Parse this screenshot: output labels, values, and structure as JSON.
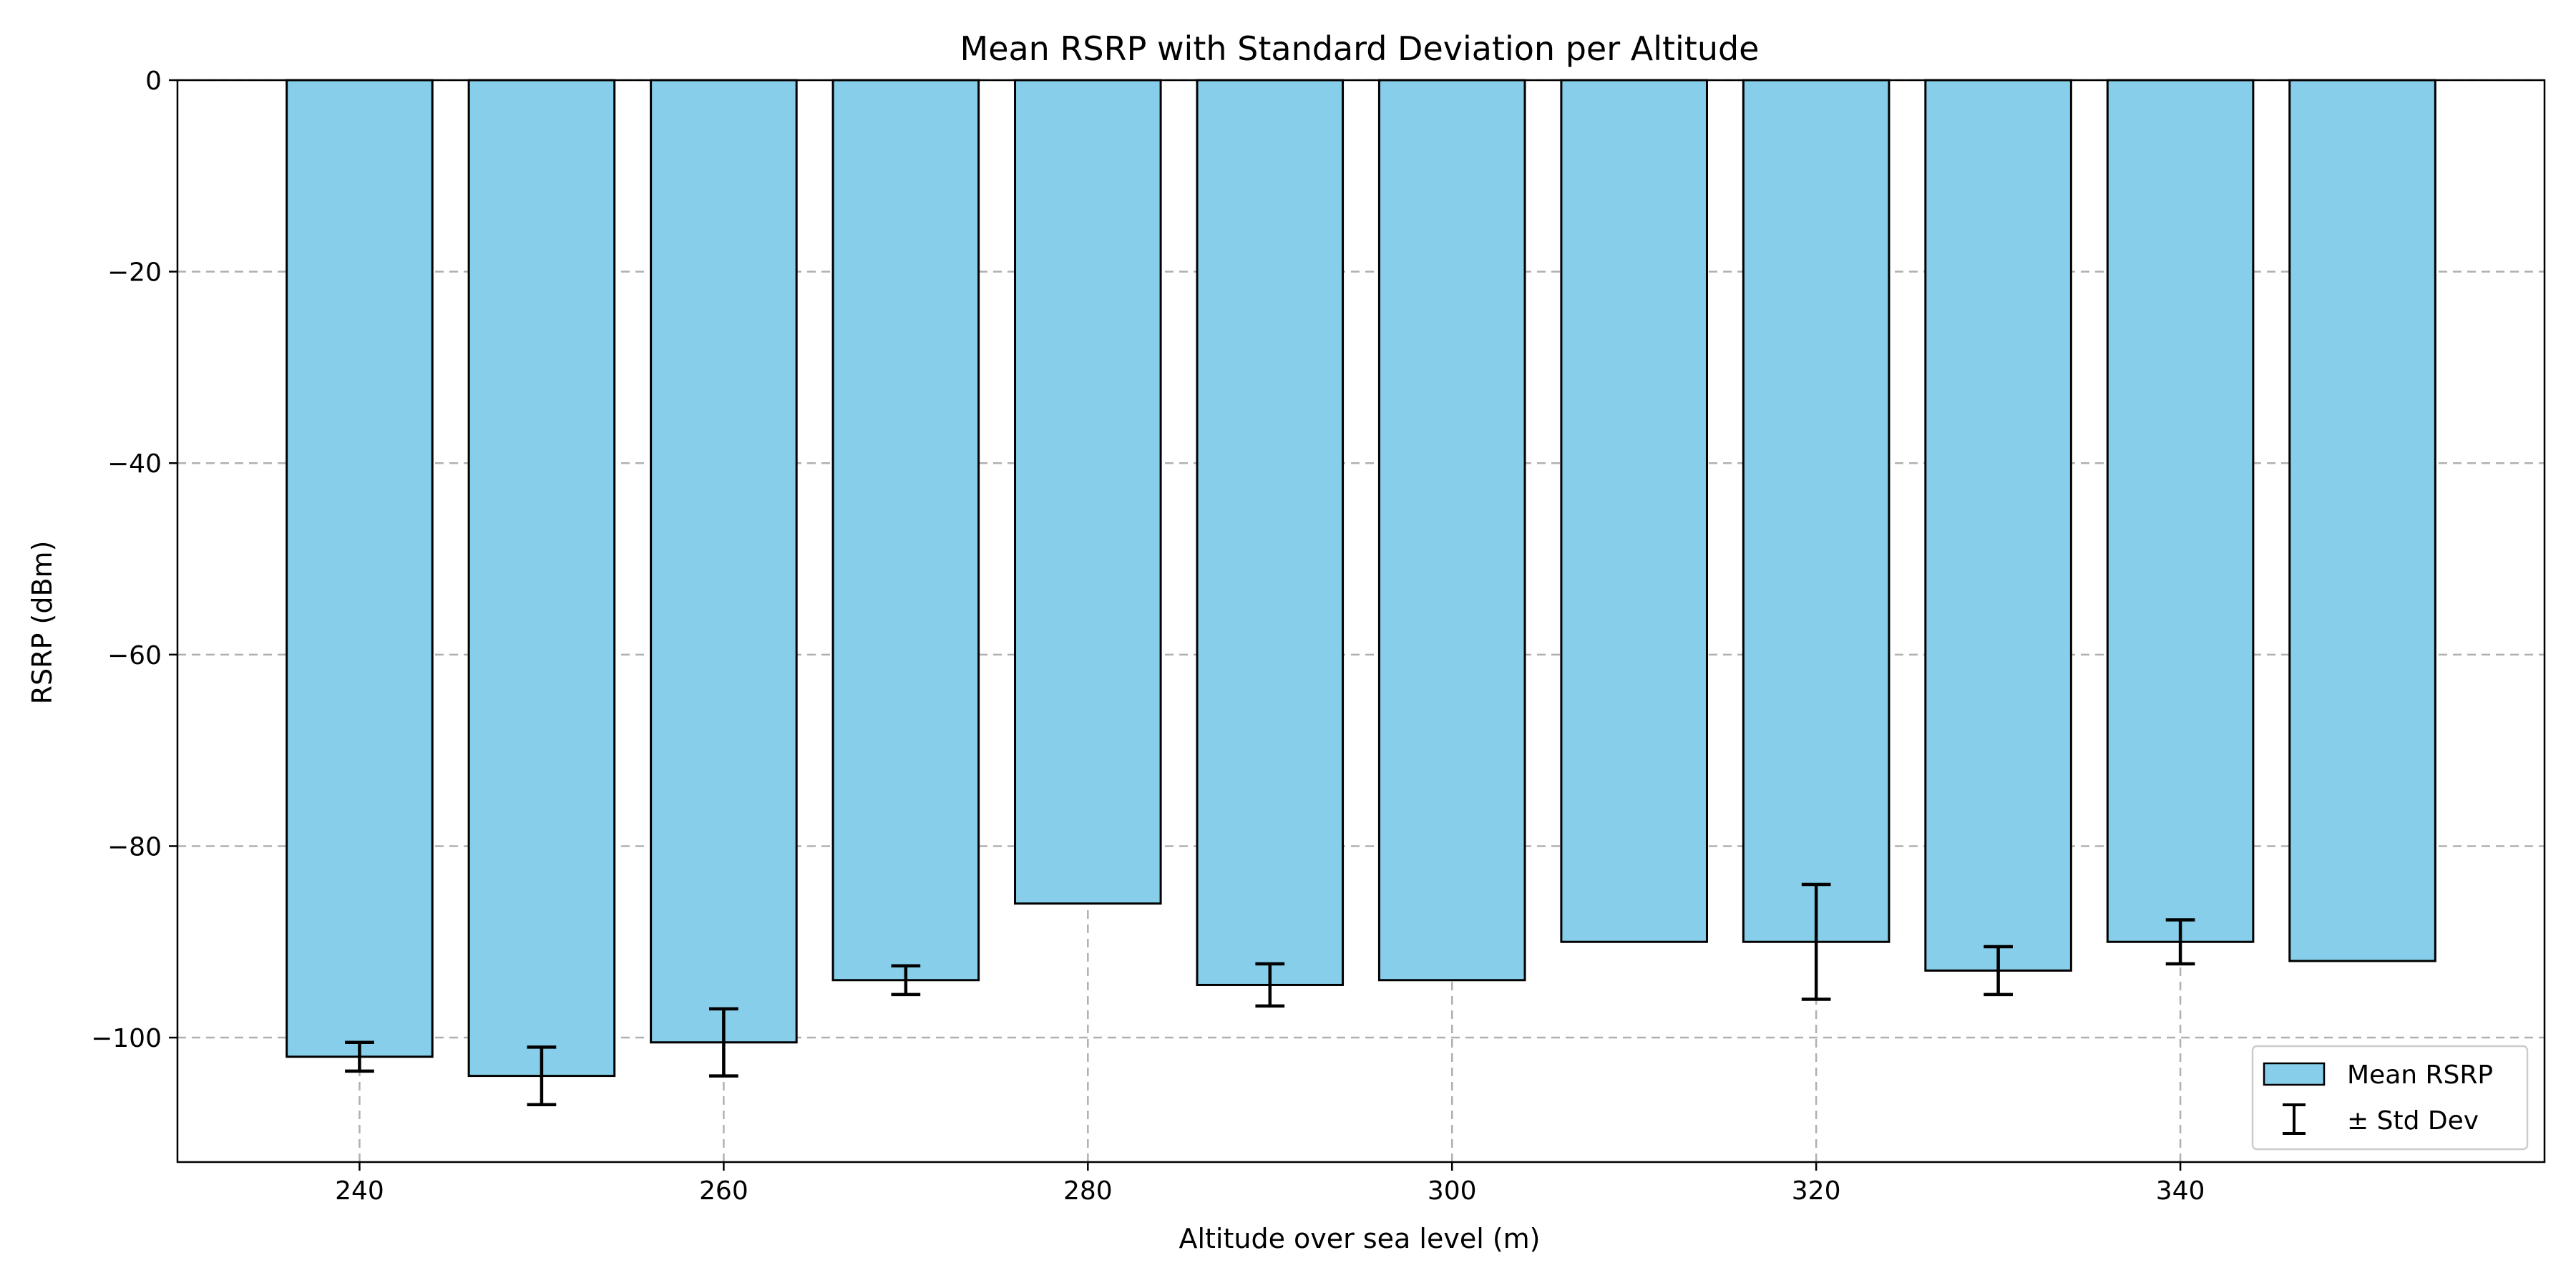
{
  "chart_data": {
    "type": "bar",
    "title": "Mean RSRP with Standard Deviation per Altitude",
    "xlabel": "Altitude over sea level (m)",
    "ylabel": "RSRP (dBm)",
    "x": [
      240,
      250,
      260,
      270,
      280,
      290,
      300,
      310,
      320,
      330,
      340,
      350
    ],
    "series": [
      {
        "name": "Mean RSRP",
        "values": [
          -102,
          -104,
          -100.5,
          -94,
          -86,
          -94.5,
          -94,
          -90,
          -90,
          -93,
          -90,
          -92
        ],
        "std": [
          1.5,
          3,
          3.5,
          1.5,
          null,
          2.2,
          null,
          null,
          6,
          2.5,
          2.3,
          null
        ]
      }
    ],
    "error_label": "± Std Dev",
    "xlim": [
      230,
      360
    ],
    "ylim": [
      -113,
      0
    ],
    "xticks": [
      240,
      260,
      280,
      300,
      320,
      340
    ],
    "xtick_labels": [
      "240",
      "260",
      "280",
      "300",
      "320",
      "340"
    ],
    "yticks": [
      0,
      -20,
      -40,
      -60,
      -80,
      -100
    ],
    "ytick_labels": [
      "0",
      "−20",
      "−40",
      "−60",
      "−80",
      "−100"
    ],
    "grid": true,
    "legend_position": "bottom-right",
    "colors": {
      "bar_fill": "#87CEEB",
      "bar_edge": "#000000",
      "error_bar": "#000000",
      "grid": "#b0b0b0"
    }
  }
}
